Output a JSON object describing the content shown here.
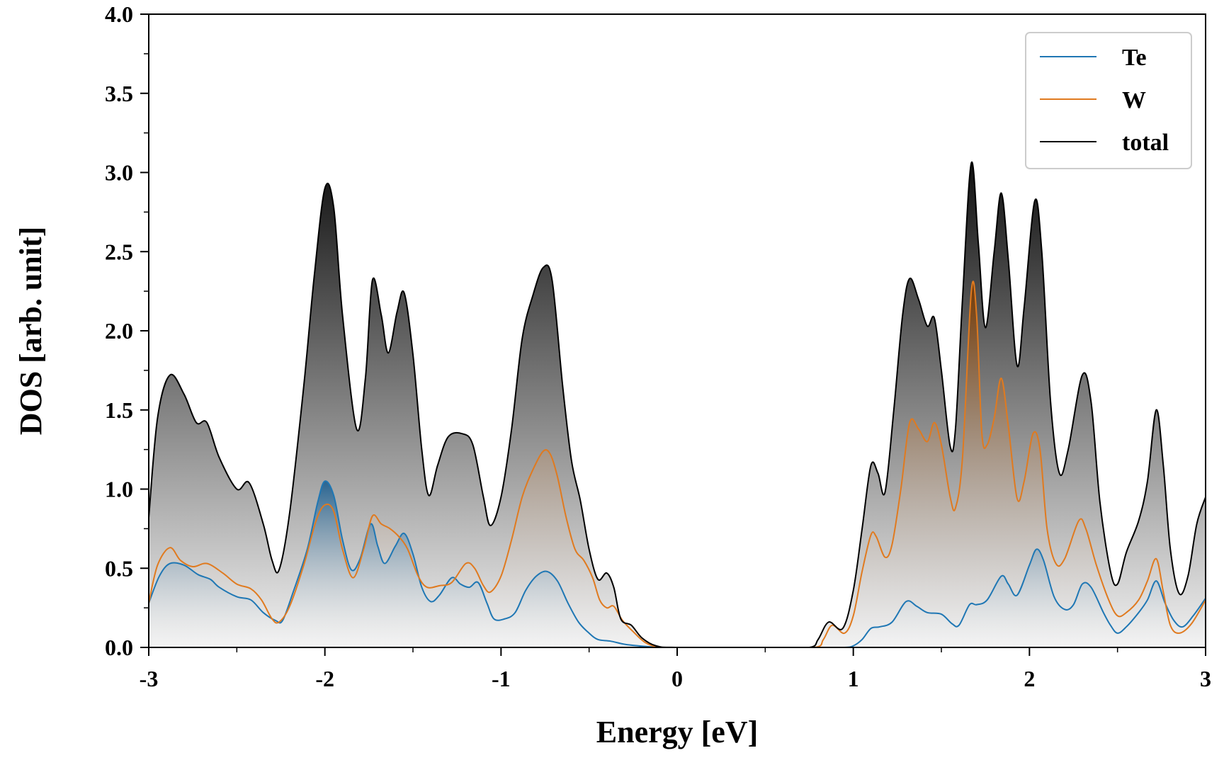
{
  "chart_data": {
    "type": "area",
    "title": "",
    "xlabel": "Energy [eV]",
    "ylabel": "DOS [arb. unit]",
    "xlim": [
      -3,
      3
    ],
    "ylim": [
      0,
      4
    ],
    "x_ticks": [
      -3,
      -2,
      -1,
      0,
      1,
      2,
      3
    ],
    "x_tick_labels": [
      "-3",
      "-2",
      "-1",
      "0",
      "1",
      "2",
      "3"
    ],
    "y_ticks": [
      0,
      0.5,
      1,
      1.5,
      2,
      2.5,
      3,
      3.5,
      4
    ],
    "y_tick_labels": [
      "0.0",
      "0.5",
      "1.0",
      "1.5",
      "2.0",
      "2.5",
      "3.0",
      "3.5",
      "4.0"
    ],
    "legend_position": "top-right",
    "series": [
      {
        "name": "Te",
        "color": "#1f77b4",
        "fill_top": "#1f5f8f",
        "points": [
          [
            -3.0,
            0.28
          ],
          [
            -2.94,
            0.45
          ],
          [
            -2.88,
            0.53
          ],
          [
            -2.8,
            0.52
          ],
          [
            -2.72,
            0.46
          ],
          [
            -2.65,
            0.43
          ],
          [
            -2.6,
            0.38
          ],
          [
            -2.5,
            0.32
          ],
          [
            -2.42,
            0.3
          ],
          [
            -2.35,
            0.22
          ],
          [
            -2.28,
            0.17
          ],
          [
            -2.24,
            0.17
          ],
          [
            -2.18,
            0.35
          ],
          [
            -2.1,
            0.62
          ],
          [
            -2.04,
            0.92
          ],
          [
            -2.0,
            1.05
          ],
          [
            -1.95,
            0.96
          ],
          [
            -1.9,
            0.68
          ],
          [
            -1.85,
            0.49
          ],
          [
            -1.8,
            0.56
          ],
          [
            -1.74,
            0.78
          ],
          [
            -1.7,
            0.64
          ],
          [
            -1.66,
            0.53
          ],
          [
            -1.6,
            0.64
          ],
          [
            -1.55,
            0.72
          ],
          [
            -1.5,
            0.59
          ],
          [
            -1.45,
            0.38
          ],
          [
            -1.4,
            0.29
          ],
          [
            -1.35,
            0.33
          ],
          [
            -1.28,
            0.44
          ],
          [
            -1.23,
            0.4
          ],
          [
            -1.18,
            0.38
          ],
          [
            -1.13,
            0.41
          ],
          [
            -1.08,
            0.28
          ],
          [
            -1.04,
            0.18
          ],
          [
            -0.98,
            0.18
          ],
          [
            -0.92,
            0.22
          ],
          [
            -0.86,
            0.36
          ],
          [
            -0.8,
            0.45
          ],
          [
            -0.74,
            0.48
          ],
          [
            -0.68,
            0.42
          ],
          [
            -0.62,
            0.28
          ],
          [
            -0.56,
            0.16
          ],
          [
            -0.5,
            0.09
          ],
          [
            -0.45,
            0.05
          ],
          [
            -0.38,
            0.04
          ],
          [
            -0.3,
            0.02
          ],
          [
            -0.22,
            0.01
          ],
          [
            -0.1,
            0.0
          ],
          [
            0.0,
            0.0
          ],
          [
            0.5,
            0.0
          ],
          [
            0.8,
            0.0
          ],
          [
            0.95,
            0.0
          ],
          [
            1.0,
            0.01
          ],
          [
            1.05,
            0.05
          ],
          [
            1.1,
            0.12
          ],
          [
            1.15,
            0.13
          ],
          [
            1.22,
            0.16
          ],
          [
            1.3,
            0.29
          ],
          [
            1.36,
            0.26
          ],
          [
            1.42,
            0.22
          ],
          [
            1.5,
            0.21
          ],
          [
            1.56,
            0.15
          ],
          [
            1.6,
            0.14
          ],
          [
            1.66,
            0.27
          ],
          [
            1.7,
            0.27
          ],
          [
            1.76,
            0.3
          ],
          [
            1.84,
            0.45
          ],
          [
            1.88,
            0.4
          ],
          [
            1.93,
            0.33
          ],
          [
            2.0,
            0.52
          ],
          [
            2.04,
            0.62
          ],
          [
            2.08,
            0.55
          ],
          [
            2.14,
            0.32
          ],
          [
            2.2,
            0.24
          ],
          [
            2.25,
            0.27
          ],
          [
            2.3,
            0.4
          ],
          [
            2.35,
            0.38
          ],
          [
            2.42,
            0.22
          ],
          [
            2.46,
            0.14
          ],
          [
            2.5,
            0.09
          ],
          [
            2.55,
            0.13
          ],
          [
            2.62,
            0.22
          ],
          [
            2.67,
            0.3
          ],
          [
            2.72,
            0.42
          ],
          [
            2.77,
            0.28
          ],
          [
            2.82,
            0.17
          ],
          [
            2.87,
            0.13
          ],
          [
            2.93,
            0.2
          ],
          [
            3.0,
            0.31
          ]
        ]
      },
      {
        "name": "W",
        "color": "#e07a1f",
        "fill_top": "#7a3d06",
        "points": [
          [
            -3.0,
            0.28
          ],
          [
            -2.95,
            0.52
          ],
          [
            -2.88,
            0.63
          ],
          [
            -2.82,
            0.55
          ],
          [
            -2.75,
            0.51
          ],
          [
            -2.67,
            0.53
          ],
          [
            -2.58,
            0.47
          ],
          [
            -2.5,
            0.4
          ],
          [
            -2.42,
            0.37
          ],
          [
            -2.36,
            0.3
          ],
          [
            -2.3,
            0.18
          ],
          [
            -2.26,
            0.16
          ],
          [
            -2.2,
            0.26
          ],
          [
            -2.12,
            0.52
          ],
          [
            -2.05,
            0.8
          ],
          [
            -2.0,
            0.9
          ],
          [
            -1.95,
            0.86
          ],
          [
            -1.9,
            0.62
          ],
          [
            -1.84,
            0.44
          ],
          [
            -1.78,
            0.62
          ],
          [
            -1.73,
            0.83
          ],
          [
            -1.68,
            0.78
          ],
          [
            -1.63,
            0.75
          ],
          [
            -1.58,
            0.7
          ],
          [
            -1.53,
            0.62
          ],
          [
            -1.47,
            0.45
          ],
          [
            -1.42,
            0.38
          ],
          [
            -1.35,
            0.39
          ],
          [
            -1.28,
            0.41
          ],
          [
            -1.2,
            0.53
          ],
          [
            -1.15,
            0.5
          ],
          [
            -1.1,
            0.39
          ],
          [
            -1.06,
            0.35
          ],
          [
            -1.0,
            0.45
          ],
          [
            -0.94,
            0.68
          ],
          [
            -0.88,
            0.95
          ],
          [
            -0.82,
            1.12
          ],
          [
            -0.76,
            1.24
          ],
          [
            -0.72,
            1.22
          ],
          [
            -0.68,
            1.08
          ],
          [
            -0.63,
            0.82
          ],
          [
            -0.58,
            0.62
          ],
          [
            -0.53,
            0.55
          ],
          [
            -0.48,
            0.44
          ],
          [
            -0.44,
            0.3
          ],
          [
            -0.4,
            0.25
          ],
          [
            -0.36,
            0.26
          ],
          [
            -0.31,
            0.17
          ],
          [
            -0.25,
            0.1
          ],
          [
            -0.18,
            0.03
          ],
          [
            -0.1,
            0.0
          ],
          [
            0.0,
            0.0
          ],
          [
            0.5,
            0.0
          ],
          [
            0.78,
            0.0
          ],
          [
            0.83,
            0.05
          ],
          [
            0.88,
            0.14
          ],
          [
            0.95,
            0.09
          ],
          [
            1.0,
            0.2
          ],
          [
            1.05,
            0.48
          ],
          [
            1.1,
            0.71
          ],
          [
            1.13,
            0.7
          ],
          [
            1.18,
            0.57
          ],
          [
            1.22,
            0.65
          ],
          [
            1.27,
            1.0
          ],
          [
            1.32,
            1.42
          ],
          [
            1.37,
            1.38
          ],
          [
            1.42,
            1.3
          ],
          [
            1.46,
            1.42
          ],
          [
            1.5,
            1.28
          ],
          [
            1.55,
            0.95
          ],
          [
            1.58,
            0.88
          ],
          [
            1.62,
            1.2
          ],
          [
            1.67,
            2.25
          ],
          [
            1.7,
            2.1
          ],
          [
            1.73,
            1.35
          ],
          [
            1.76,
            1.28
          ],
          [
            1.8,
            1.45
          ],
          [
            1.84,
            1.7
          ],
          [
            1.88,
            1.4
          ],
          [
            1.93,
            0.94
          ],
          [
            1.97,
            1.05
          ],
          [
            2.02,
            1.35
          ],
          [
            2.06,
            1.25
          ],
          [
            2.1,
            0.75
          ],
          [
            2.15,
            0.53
          ],
          [
            2.2,
            0.56
          ],
          [
            2.28,
            0.8
          ],
          [
            2.32,
            0.75
          ],
          [
            2.38,
            0.52
          ],
          [
            2.45,
            0.3
          ],
          [
            2.5,
            0.2
          ],
          [
            2.55,
            0.22
          ],
          [
            2.62,
            0.3
          ],
          [
            2.67,
            0.42
          ],
          [
            2.72,
            0.56
          ],
          [
            2.76,
            0.35
          ],
          [
            2.8,
            0.14
          ],
          [
            2.85,
            0.09
          ],
          [
            2.92,
            0.15
          ],
          [
            3.0,
            0.3
          ]
        ]
      },
      {
        "name": "total",
        "color": "#000000",
        "fill_top": "#111111",
        "points": [
          [
            -3.0,
            0.82
          ],
          [
            -2.95,
            1.45
          ],
          [
            -2.88,
            1.72
          ],
          [
            -2.8,
            1.6
          ],
          [
            -2.73,
            1.42
          ],
          [
            -2.67,
            1.42
          ],
          [
            -2.6,
            1.2
          ],
          [
            -2.5,
            1.0
          ],
          [
            -2.43,
            1.04
          ],
          [
            -2.35,
            0.78
          ],
          [
            -2.3,
            0.55
          ],
          [
            -2.26,
            0.49
          ],
          [
            -2.2,
            0.85
          ],
          [
            -2.12,
            1.65
          ],
          [
            -2.06,
            2.35
          ],
          [
            -2.0,
            2.9
          ],
          [
            -1.95,
            2.78
          ],
          [
            -1.9,
            2.1
          ],
          [
            -1.82,
            1.38
          ],
          [
            -1.77,
            1.7
          ],
          [
            -1.73,
            2.32
          ],
          [
            -1.68,
            2.1
          ],
          [
            -1.64,
            1.86
          ],
          [
            -1.59,
            2.12
          ],
          [
            -1.55,
            2.24
          ],
          [
            -1.5,
            1.85
          ],
          [
            -1.45,
            1.25
          ],
          [
            -1.41,
            0.96
          ],
          [
            -1.36,
            1.15
          ],
          [
            -1.3,
            1.33
          ],
          [
            -1.22,
            1.35
          ],
          [
            -1.16,
            1.28
          ],
          [
            -1.1,
            0.95
          ],
          [
            -1.06,
            0.77
          ],
          [
            -1.0,
            0.95
          ],
          [
            -0.94,
            1.38
          ],
          [
            -0.88,
            1.95
          ],
          [
            -0.82,
            2.22
          ],
          [
            -0.76,
            2.4
          ],
          [
            -0.71,
            2.32
          ],
          [
            -0.65,
            1.65
          ],
          [
            -0.6,
            1.18
          ],
          [
            -0.55,
            0.93
          ],
          [
            -0.5,
            0.62
          ],
          [
            -0.45,
            0.43
          ],
          [
            -0.4,
            0.47
          ],
          [
            -0.36,
            0.38
          ],
          [
            -0.32,
            0.18
          ],
          [
            -0.26,
            0.14
          ],
          [
            -0.2,
            0.06
          ],
          [
            -0.12,
            0.01
          ],
          [
            0.0,
            0.0
          ],
          [
            0.5,
            0.0
          ],
          [
            0.75,
            0.0
          ],
          [
            0.8,
            0.05
          ],
          [
            0.86,
            0.16
          ],
          [
            0.94,
            0.12
          ],
          [
            1.0,
            0.36
          ],
          [
            1.05,
            0.75
          ],
          [
            1.1,
            1.15
          ],
          [
            1.14,
            1.1
          ],
          [
            1.18,
            0.98
          ],
          [
            1.23,
            1.5
          ],
          [
            1.28,
            2.1
          ],
          [
            1.32,
            2.33
          ],
          [
            1.37,
            2.2
          ],
          [
            1.42,
            2.03
          ],
          [
            1.46,
            2.08
          ],
          [
            1.5,
            1.75
          ],
          [
            1.55,
            1.27
          ],
          [
            1.58,
            1.38
          ],
          [
            1.62,
            2.2
          ],
          [
            1.67,
            3.06
          ],
          [
            1.71,
            2.55
          ],
          [
            1.75,
            2.02
          ],
          [
            1.8,
            2.5
          ],
          [
            1.84,
            2.87
          ],
          [
            1.88,
            2.45
          ],
          [
            1.93,
            1.78
          ],
          [
            1.97,
            2.15
          ],
          [
            2.03,
            2.82
          ],
          [
            2.07,
            2.5
          ],
          [
            2.12,
            1.55
          ],
          [
            2.17,
            1.1
          ],
          [
            2.22,
            1.25
          ],
          [
            2.3,
            1.72
          ],
          [
            2.35,
            1.55
          ],
          [
            2.4,
            0.92
          ],
          [
            2.46,
            0.48
          ],
          [
            2.5,
            0.4
          ],
          [
            2.55,
            0.6
          ],
          [
            2.62,
            0.8
          ],
          [
            2.67,
            1.05
          ],
          [
            2.72,
            1.5
          ],
          [
            2.76,
            1.15
          ],
          [
            2.8,
            0.62
          ],
          [
            2.85,
            0.34
          ],
          [
            2.9,
            0.45
          ],
          [
            2.95,
            0.78
          ],
          [
            3.0,
            0.95
          ]
        ]
      }
    ]
  }
}
